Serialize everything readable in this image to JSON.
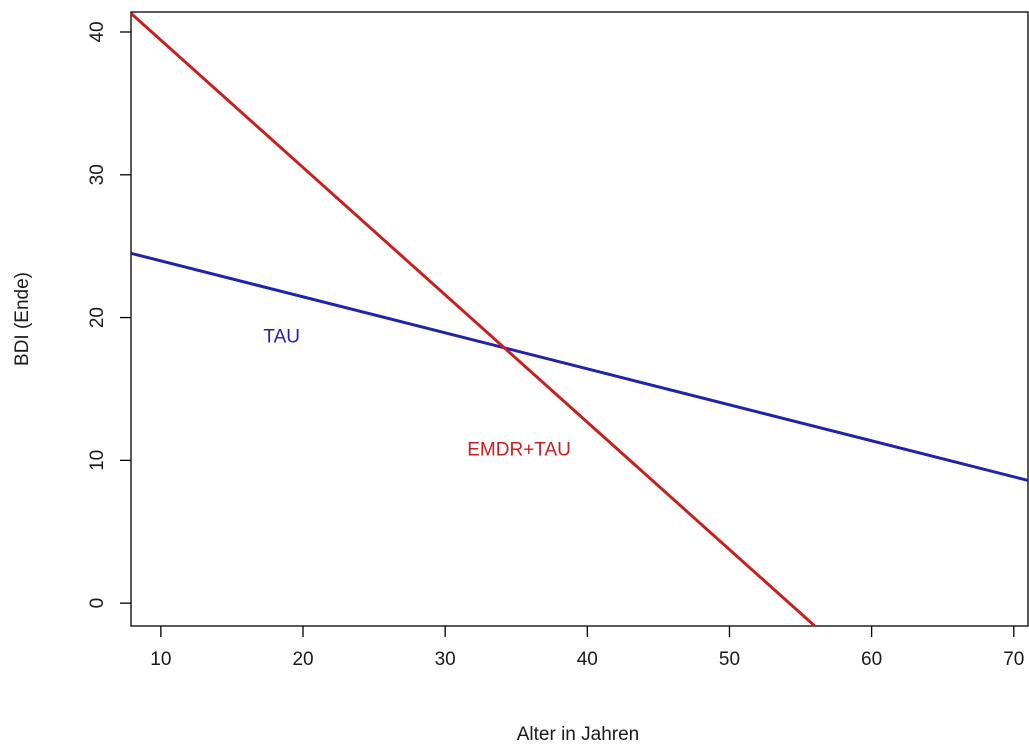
{
  "chart_data": {
    "type": "line",
    "xlabel": "Alter in Jahren",
    "ylabel": "BDI (Ende)",
    "xlim": [
      7.9,
      71.0
    ],
    "ylim": [
      -1.6,
      41.4
    ],
    "x_ticks": [
      10,
      20,
      30,
      40,
      50,
      60,
      70
    ],
    "y_ticks": [
      0,
      10,
      20,
      30,
      40
    ],
    "grid": false,
    "legend": "none",
    "series": [
      {
        "name": "TAU",
        "color": "#2222aa",
        "x": [
          7.9,
          71.0
        ],
        "y": [
          24.5,
          8.6
        ]
      },
      {
        "name": "EMDR+TAU",
        "color": "#c42222",
        "x": [
          7.9,
          56.0
        ],
        "y": [
          41.3,
          -1.6
        ]
      }
    ],
    "annotations": [
      {
        "text": "TAU",
        "x": 18.5,
        "y": 18.6,
        "color": "#2222aa"
      },
      {
        "text": "EMDR+TAU",
        "x": 35.2,
        "y": 10.7,
        "color": "#c42222"
      }
    ]
  }
}
